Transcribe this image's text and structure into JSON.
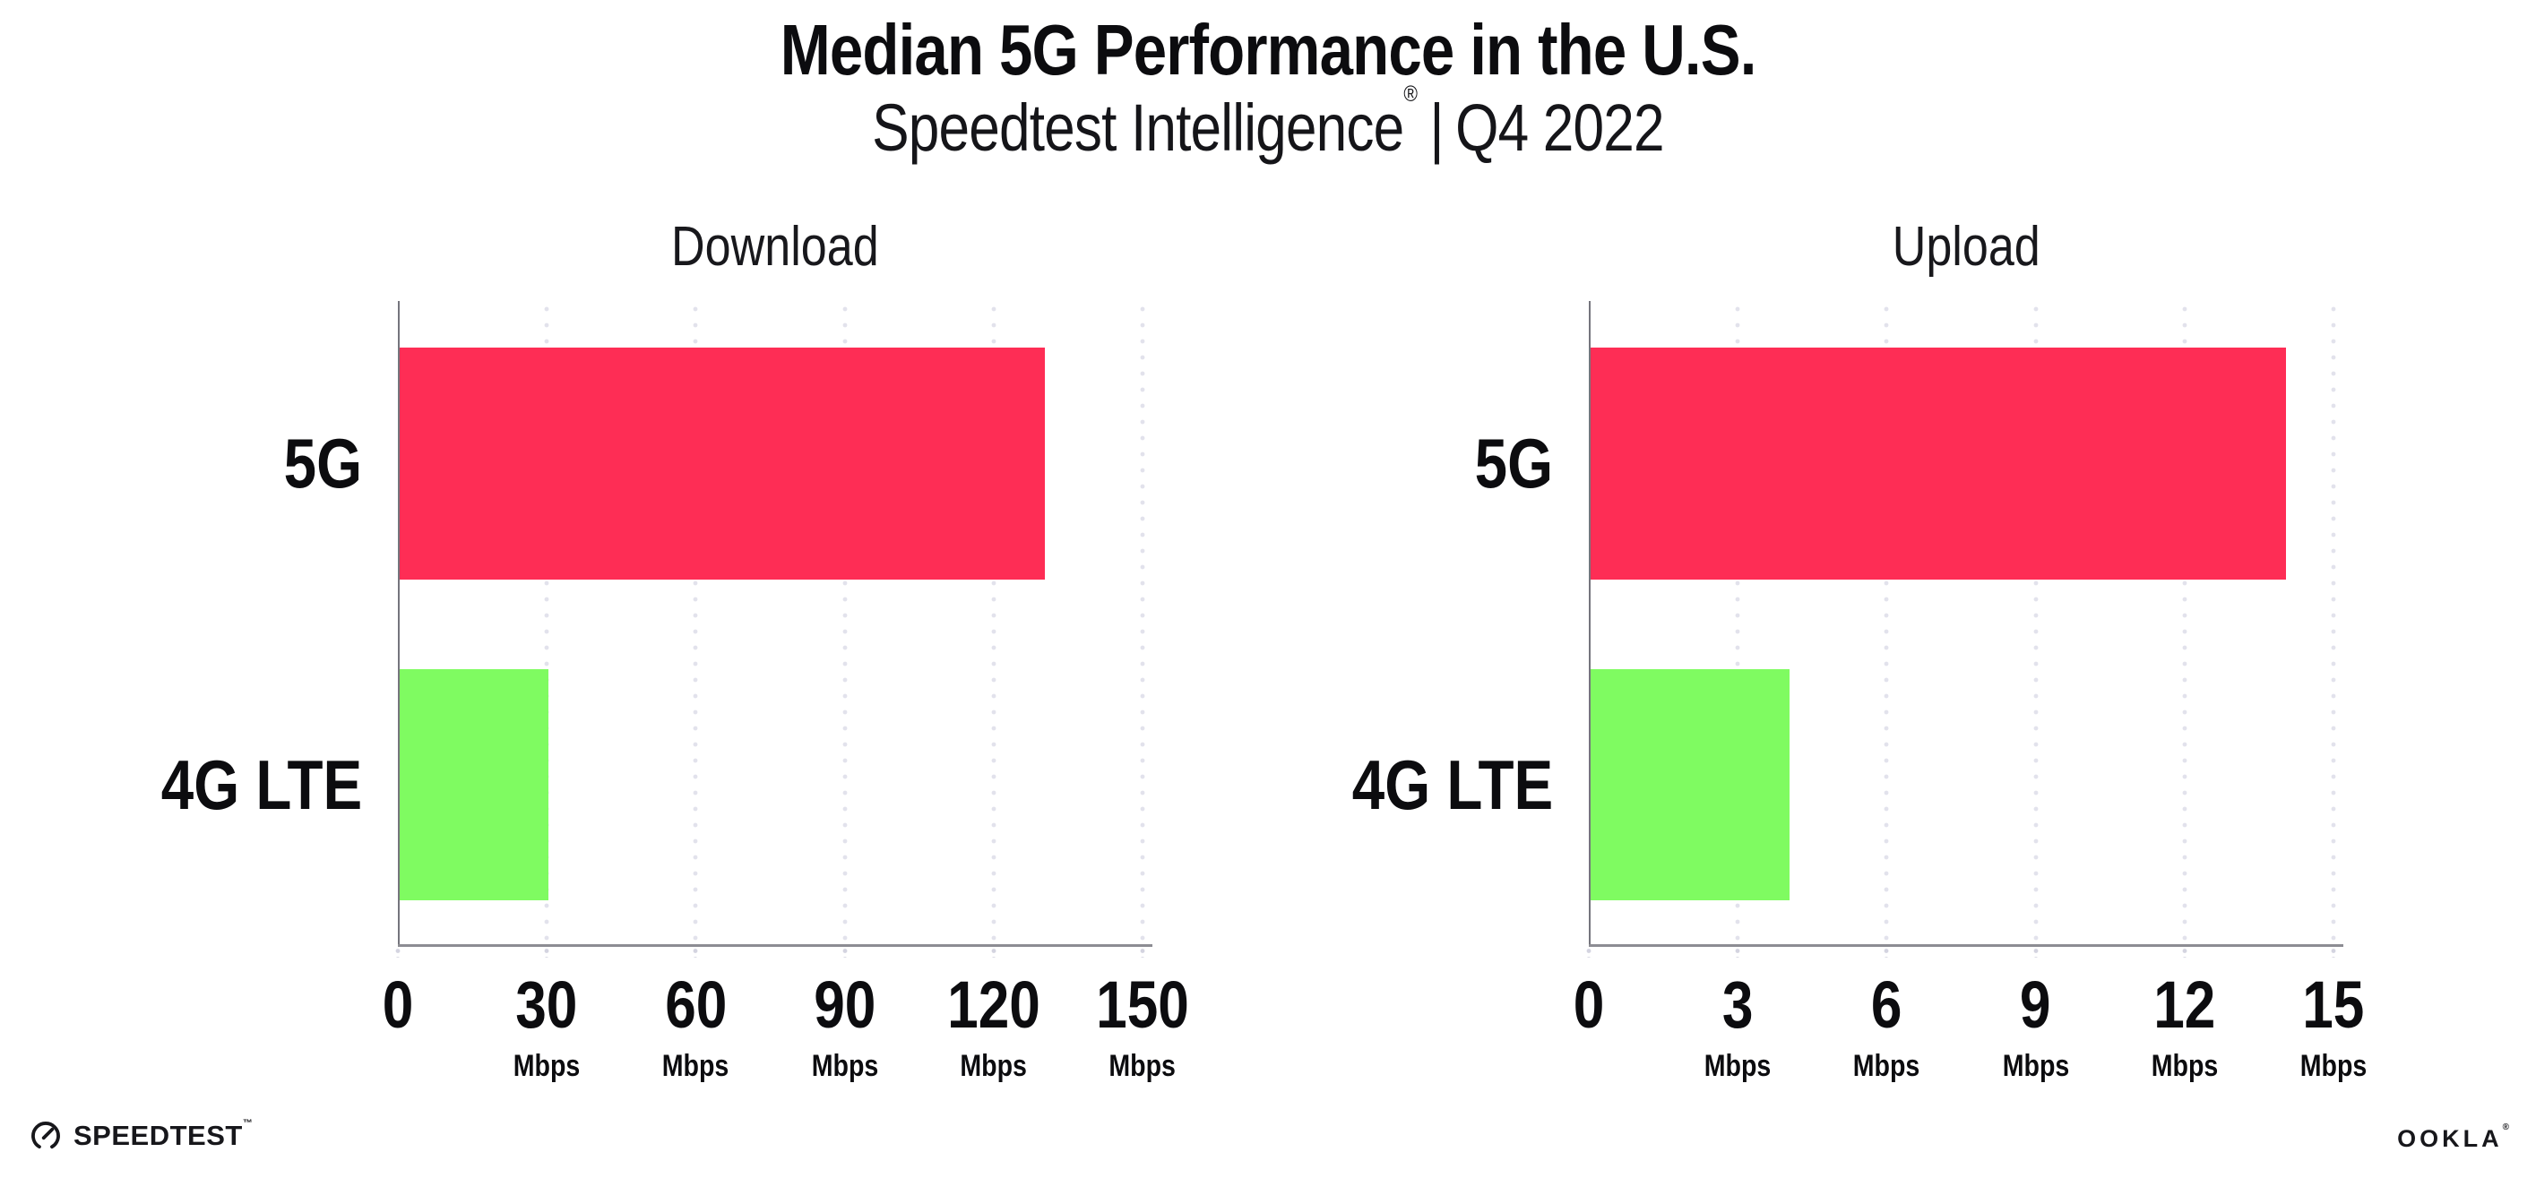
{
  "header": {
    "title": "Median 5G Performance in the U.S.",
    "subtitle_brand": "Speedtest Intelligence",
    "subtitle_reg": "®",
    "subtitle_sep": "|",
    "subtitle_period": "Q4 2022"
  },
  "chart_data": [
    {
      "type": "bar",
      "orientation": "horizontal",
      "title": "Download",
      "categories": [
        "5G",
        "4G LTE"
      ],
      "values": [
        130,
        30
      ],
      "unit": "Mbps",
      "xlim": [
        0,
        152
      ],
      "xticks": [
        0,
        30,
        60,
        90,
        120,
        150
      ],
      "bar_colors": [
        "#FE2D55",
        "#7FFB61"
      ],
      "grid": "dotted-vertical",
      "legend": "none"
    },
    {
      "type": "bar",
      "orientation": "horizontal",
      "title": "Upload",
      "categories": [
        "5G",
        "4G LTE"
      ],
      "values": [
        14,
        4
      ],
      "unit": "Mbps",
      "xlim": [
        0,
        15.2
      ],
      "xticks": [
        0,
        3,
        6,
        9,
        12,
        15
      ],
      "bar_colors": [
        "#FE2D55",
        "#7FFB61"
      ],
      "grid": "dotted-vertical",
      "legend": "none"
    }
  ],
  "footer": {
    "speedtest_label": "SPEEDTEST",
    "speedtest_tm": "™",
    "ookla_label": "OOKLA",
    "ookla_reg": "®"
  },
  "colors": {
    "bar_5g": "#FE2D55",
    "bar_4g_lte": "#7FFB61",
    "gridline": "#E2E2EC",
    "axis": "#8D8D93",
    "text": "#111114",
    "background": "#FFFFFF"
  }
}
